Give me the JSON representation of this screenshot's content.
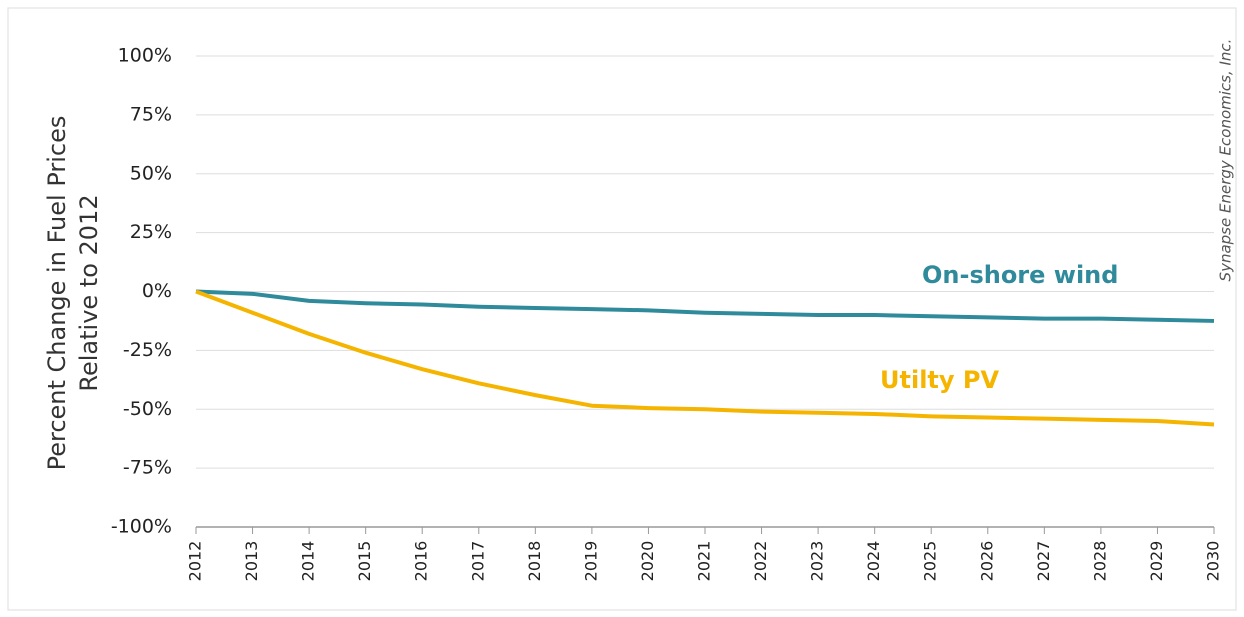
{
  "chart_data": {
    "type": "line",
    "y_label": [
      "Percent Change in Fuel Prices",
      "Relative to 2012"
    ],
    "credit": "Synapse Energy Economics, Inc.",
    "categories": [
      "2012",
      "2013",
      "2014",
      "2015",
      "2016",
      "2017",
      "2018",
      "2019",
      "2020",
      "2021",
      "2022",
      "2023",
      "2024",
      "2025",
      "2026",
      "2027",
      "2028",
      "2029",
      "2030"
    ],
    "series": [
      {
        "name": "On-shore wind",
        "color": "#2f8a9b",
        "values": [
          0,
          -1,
          -4,
          -5,
          -5.5,
          -6.5,
          -7,
          -7.5,
          -8,
          -9,
          -9.5,
          -10,
          -10,
          -10.5,
          -11,
          -11.5,
          -11.5,
          -12,
          -12.5
        ]
      },
      {
        "name": "Utilty PV",
        "color": "#f5b400",
        "values": [
          0,
          -9,
          -18,
          -26,
          -33,
          -39,
          -44,
          -48.5,
          -49.5,
          -50,
          -51,
          -51.5,
          -52,
          -53,
          -53.5,
          -54,
          -54.5,
          -55,
          -56.5
        ]
      }
    ],
    "ylim": [
      -100,
      100
    ],
    "yticks": [
      {
        "value": 100,
        "label": "100%"
      },
      {
        "value": 75,
        "label": "75%"
      },
      {
        "value": 50,
        "label": "50%"
      },
      {
        "value": 25,
        "label": "25%"
      },
      {
        "value": 0,
        "label": "0%"
      },
      {
        "value": -25,
        "label": "-25%"
      },
      {
        "value": -50,
        "label": "-50%"
      },
      {
        "value": -75,
        "label": "-75%"
      },
      {
        "value": -100,
        "label": "-100%"
      }
    ],
    "grid": true
  }
}
